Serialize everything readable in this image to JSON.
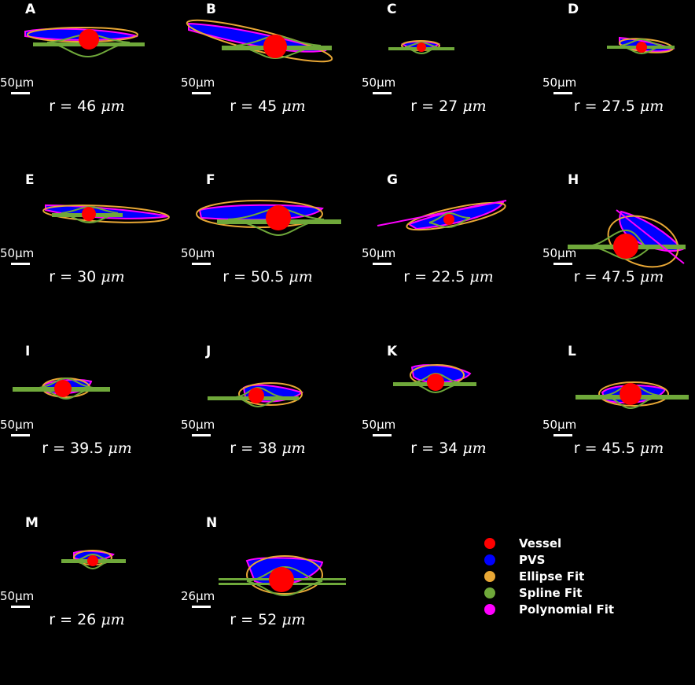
{
  "colors": {
    "vessel": "#ff0000",
    "pvs": "#0000ff",
    "ellipse": "#e8a735",
    "spline": "#6fa83a",
    "polynomial": "#ff00ff"
  },
  "panels": [
    {
      "letter": "A",
      "scale": "50",
      "scale_unit": "μm",
      "radius": "r = 46",
      "radius_unit": "μm"
    },
    {
      "letter": "B",
      "scale": "50",
      "scale_unit": "μm",
      "radius": "r = 45",
      "radius_unit": "μm"
    },
    {
      "letter": "C",
      "scale": "50",
      "scale_unit": "μm",
      "radius": "r = 27",
      "radius_unit": "μm"
    },
    {
      "letter": "D",
      "scale": "50",
      "scale_unit": "μm",
      "radius": "r = 27.5",
      "radius_unit": "μm"
    },
    {
      "letter": "E",
      "scale": "50",
      "scale_unit": "μm",
      "radius": "r = 30",
      "radius_unit": "μm"
    },
    {
      "letter": "F",
      "scale": "50",
      "scale_unit": "μm",
      "radius": "r = 50.5",
      "radius_unit": "μm"
    },
    {
      "letter": "G",
      "scale": "50",
      "scale_unit": "μm",
      "radius": "r = 22.5",
      "radius_unit": "μm"
    },
    {
      "letter": "H",
      "scale": "50",
      "scale_unit": "μm",
      "radius": "r = 47.5",
      "radius_unit": "μm"
    },
    {
      "letter": "I",
      "scale": "50",
      "scale_unit": "μm",
      "radius": "r = 39.5",
      "radius_unit": "μm"
    },
    {
      "letter": "J",
      "scale": "50",
      "scale_unit": "μm",
      "radius": "r = 38",
      "radius_unit": "μm"
    },
    {
      "letter": "K",
      "scale": "50",
      "scale_unit": "μm",
      "radius": "r = 34",
      "radius_unit": "μm"
    },
    {
      "letter": "L",
      "scale": "50",
      "scale_unit": "μm",
      "radius": "r = 45.5",
      "radius_unit": "μm"
    },
    {
      "letter": "M",
      "scale": "50",
      "scale_unit": "μm",
      "radius": "r = 26",
      "radius_unit": "μm"
    },
    {
      "letter": "N",
      "scale": "26",
      "scale_unit": "μm",
      "radius": "r = 52",
      "radius_unit": "μm"
    }
  ],
  "legend": [
    {
      "label": "Vessel",
      "color": "#ff0000"
    },
    {
      "label": "PVS",
      "color": "#0000ff"
    },
    {
      "label": "Ellipse Fit",
      "color": "#e8a735"
    },
    {
      "label": "Spline Fit",
      "color": "#6fa83a"
    },
    {
      "label": "Polynomial Fit",
      "color": "#ff00ff"
    }
  ]
}
